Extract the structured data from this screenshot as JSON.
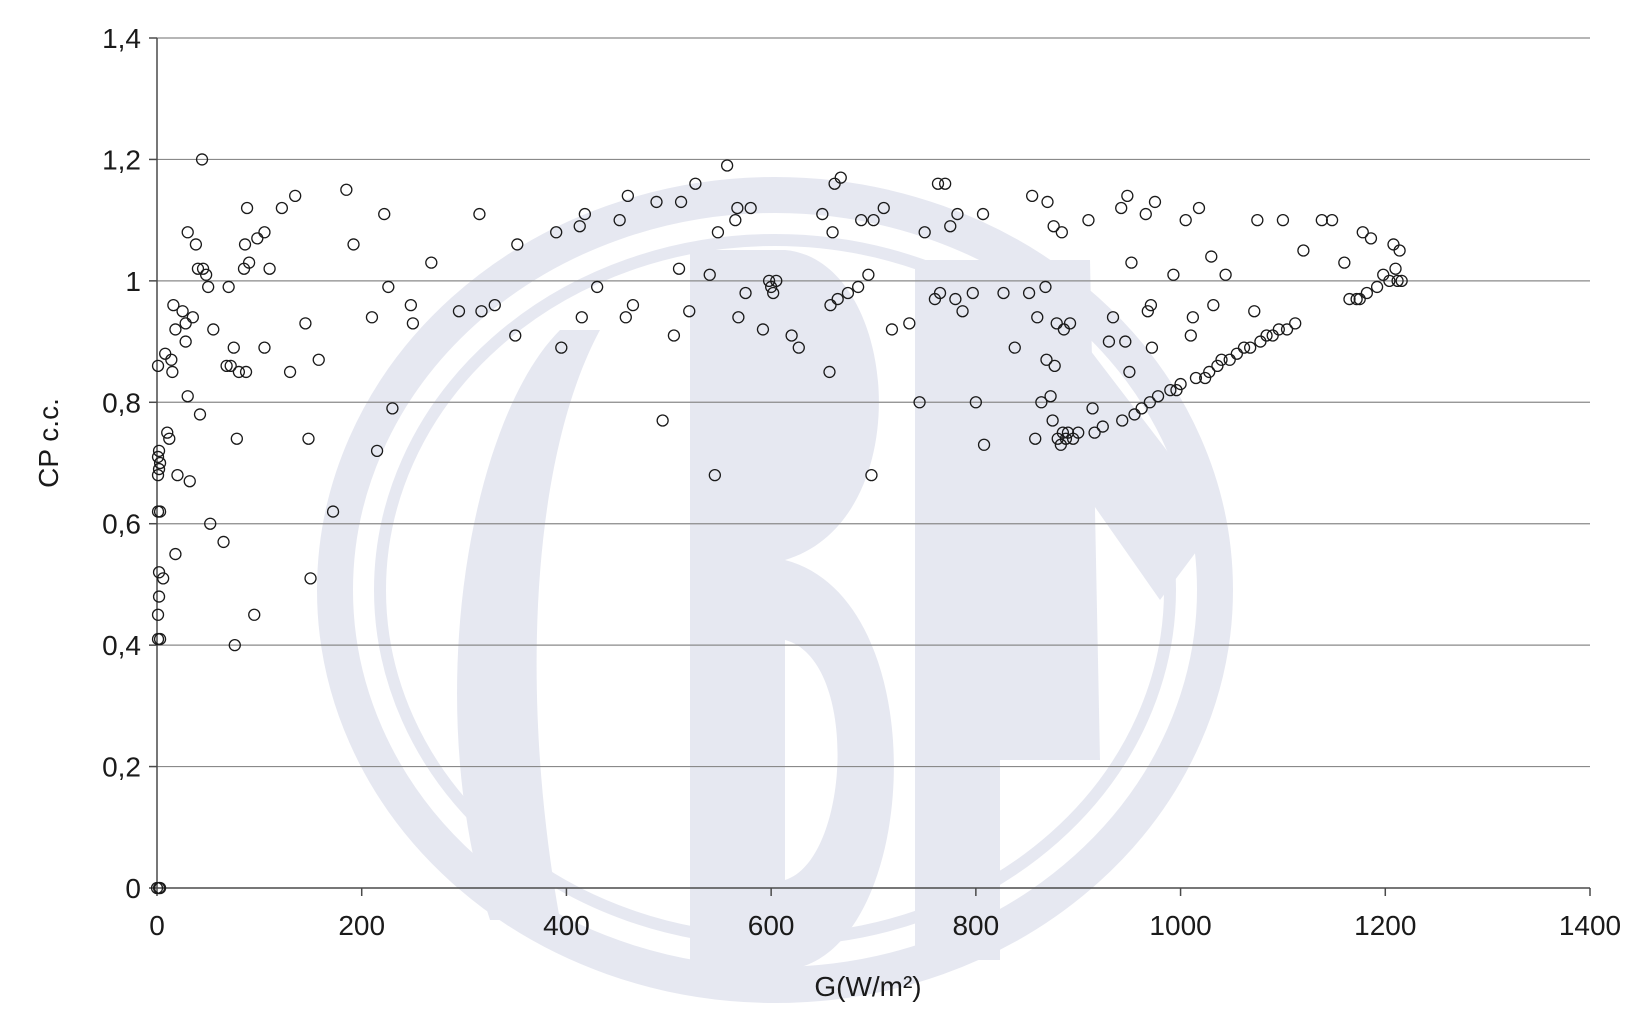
{
  "chart_data": {
    "type": "scatter",
    "xlabel": "G(W/m²)",
    "ylabel": "CP c.c.",
    "xlim": [
      0,
      1400
    ],
    "ylim": [
      0,
      1.4
    ],
    "x_ticks": [
      0,
      200,
      400,
      600,
      800,
      1000,
      1200,
      1400
    ],
    "y_ticks": [
      0,
      0.2,
      0.4,
      0.6,
      0.8,
      1,
      1.2,
      1.4
    ],
    "x_tick_labels": [
      "0",
      "200",
      "400",
      "600",
      "800",
      "1000",
      "1200",
      "1400"
    ],
    "y_tick_labels": [
      "0",
      "0,2",
      "0,4",
      "0,6",
      "0,8",
      "1",
      "1,2",
      "1,4"
    ],
    "grid": "horizontal",
    "legend": "none",
    "marker": "open-circle",
    "watermark": "ABNT",
    "points": [
      [
        0,
        0
      ],
      [
        2,
        0
      ],
      [
        3,
        0
      ],
      [
        1,
        0.41
      ],
      [
        3,
        0.41
      ],
      [
        1,
        0.45
      ],
      [
        2,
        0.48
      ],
      [
        2,
        0.52
      ],
      [
        6,
        0.51
      ],
      [
        1,
        0.62
      ],
      [
        3,
        0.62
      ],
      [
        1,
        0.68
      ],
      [
        2,
        0.69
      ],
      [
        3,
        0.7
      ],
      [
        1,
        0.71
      ],
      [
        2,
        0.72
      ],
      [
        1,
        0.86
      ],
      [
        8,
        0.88
      ],
      [
        10,
        0.75
      ],
      [
        12,
        0.74
      ],
      [
        14,
        0.87
      ],
      [
        15,
        0.85
      ],
      [
        16,
        0.96
      ],
      [
        18,
        0.92
      ],
      [
        18,
        0.55
      ],
      [
        20,
        0.68
      ],
      [
        25,
        0.95
      ],
      [
        28,
        0.93
      ],
      [
        28,
        0.9
      ],
      [
        30,
        0.81
      ],
      [
        30,
        1.08
      ],
      [
        32,
        0.67
      ],
      [
        35,
        0.94
      ],
      [
        38,
        1.06
      ],
      [
        40,
        1.02
      ],
      [
        42,
        0.78
      ],
      [
        44,
        1.2
      ],
      [
        45,
        1.02
      ],
      [
        48,
        1.01
      ],
      [
        50,
        0.99
      ],
      [
        52,
        0.6
      ],
      [
        55,
        0.92
      ],
      [
        65,
        0.57
      ],
      [
        68,
        0.86
      ],
      [
        70,
        0.99
      ],
      [
        72,
        0.86
      ],
      [
        75,
        0.89
      ],
      [
        76,
        0.4
      ],
      [
        78,
        0.74
      ],
      [
        80,
        0.85
      ],
      [
        85,
        1.02
      ],
      [
        86,
        1.06
      ],
      [
        87,
        0.85
      ],
      [
        88,
        1.12
      ],
      [
        90,
        1.03
      ],
      [
        95,
        0.45
      ],
      [
        98,
        1.07
      ],
      [
        105,
        1.08
      ],
      [
        105,
        0.89
      ],
      [
        110,
        1.02
      ],
      [
        122,
        1.12
      ],
      [
        130,
        0.85
      ],
      [
        135,
        1.14
      ],
      [
        145,
        0.93
      ],
      [
        148,
        0.74
      ],
      [
        150,
        0.51
      ],
      [
        158,
        0.87
      ],
      [
        172,
        0.62
      ],
      [
        185,
        1.15
      ],
      [
        192,
        1.06
      ],
      [
        210,
        0.94
      ],
      [
        215,
        0.72
      ],
      [
        222,
        1.11
      ],
      [
        226,
        0.99
      ],
      [
        230,
        0.79
      ],
      [
        248,
        0.96
      ],
      [
        250,
        0.93
      ],
      [
        268,
        1.03
      ],
      [
        295,
        0.95
      ],
      [
        315,
        1.11
      ],
      [
        317,
        0.95
      ],
      [
        330,
        0.96
      ],
      [
        350,
        0.91
      ],
      [
        352,
        1.06
      ],
      [
        390,
        1.08
      ],
      [
        395,
        0.89
      ],
      [
        413,
        1.09
      ],
      [
        415,
        0.94
      ],
      [
        418,
        1.11
      ],
      [
        430,
        0.99
      ],
      [
        452,
        1.1
      ],
      [
        458,
        0.94
      ],
      [
        460,
        1.14
      ],
      [
        465,
        0.96
      ],
      [
        488,
        1.13
      ],
      [
        494,
        0.77
      ],
      [
        505,
        0.91
      ],
      [
        510,
        1.02
      ],
      [
        512,
        1.13
      ],
      [
        520,
        0.95
      ],
      [
        526,
        1.16
      ],
      [
        540,
        1.01
      ],
      [
        545,
        0.68
      ],
      [
        548,
        1.08
      ],
      [
        557,
        1.19
      ],
      [
        565,
        1.1
      ],
      [
        567,
        1.12
      ],
      [
        568,
        0.94
      ],
      [
        575,
        0.98
      ],
      [
        580,
        1.12
      ],
      [
        592,
        0.92
      ],
      [
        598,
        1.0
      ],
      [
        600,
        0.99
      ],
      [
        602,
        0.98
      ],
      [
        605,
        1.0
      ],
      [
        620,
        0.91
      ],
      [
        627,
        0.89
      ],
      [
        650,
        1.11
      ],
      [
        657,
        0.85
      ],
      [
        658,
        0.96
      ],
      [
        660,
        1.08
      ],
      [
        662,
        1.16
      ],
      [
        665,
        0.97
      ],
      [
        668,
        1.17
      ],
      [
        675,
        0.98
      ],
      [
        685,
        0.99
      ],
      [
        688,
        1.1
      ],
      [
        695,
        1.01
      ],
      [
        698,
        0.68
      ],
      [
        700,
        1.1
      ],
      [
        710,
        1.12
      ],
      [
        718,
        0.92
      ],
      [
        735,
        0.93
      ],
      [
        745,
        0.8
      ],
      [
        750,
        1.08
      ],
      [
        760,
        0.97
      ],
      [
        763,
        1.16
      ],
      [
        765,
        0.98
      ],
      [
        770,
        1.16
      ],
      [
        775,
        1.09
      ],
      [
        780,
        0.97
      ],
      [
        782,
        1.11
      ],
      [
        787,
        0.95
      ],
      [
        797,
        0.98
      ],
      [
        800,
        0.8
      ],
      [
        807,
        1.11
      ],
      [
        808,
        0.73
      ],
      [
        827,
        0.98
      ],
      [
        838,
        0.89
      ],
      [
        852,
        0.98
      ],
      [
        855,
        1.14
      ],
      [
        858,
        0.74
      ],
      [
        860,
        0.94
      ],
      [
        864,
        0.8
      ],
      [
        868,
        0.99
      ],
      [
        869,
        0.87
      ],
      [
        870,
        1.13
      ],
      [
        873,
        0.81
      ],
      [
        875,
        0.77
      ],
      [
        876,
        1.09
      ],
      [
        877,
        0.86
      ],
      [
        879,
        0.93
      ],
      [
        880,
        0.74
      ],
      [
        883,
        0.73
      ],
      [
        884,
        1.08
      ],
      [
        885,
        0.75
      ],
      [
        886,
        0.92
      ],
      [
        888,
        0.74
      ],
      [
        890,
        0.75
      ],
      [
        892,
        0.93
      ],
      [
        895,
        0.74
      ],
      [
        900,
        0.75
      ],
      [
        910,
        1.1
      ],
      [
        914,
        0.79
      ],
      [
        916,
        0.75
      ],
      [
        924,
        0.76
      ],
      [
        930,
        0.9
      ],
      [
        934,
        0.94
      ],
      [
        942,
        1.12
      ],
      [
        943,
        0.77
      ],
      [
        946,
        0.9
      ],
      [
        948,
        1.14
      ],
      [
        950,
        0.85
      ],
      [
        952,
        1.03
      ],
      [
        955,
        0.78
      ],
      [
        962,
        0.79
      ],
      [
        966,
        1.11
      ],
      [
        968,
        0.95
      ],
      [
        970,
        0.8
      ],
      [
        971,
        0.96
      ],
      [
        972,
        0.89
      ],
      [
        975,
        1.13
      ],
      [
        978,
        0.81
      ],
      [
        990,
        0.82
      ],
      [
        993,
        1.01
      ],
      [
        996,
        0.82
      ],
      [
        1000,
        0.83
      ],
      [
        1005,
        1.1
      ],
      [
        1010,
        0.91
      ],
      [
        1012,
        0.94
      ],
      [
        1015,
        0.84
      ],
      [
        1018,
        1.12
      ],
      [
        1024,
        0.84
      ],
      [
        1028,
        0.85
      ],
      [
        1030,
        1.04
      ],
      [
        1032,
        0.96
      ],
      [
        1036,
        0.86
      ],
      [
        1040,
        0.87
      ],
      [
        1044,
        1.01
      ],
      [
        1048,
        0.87
      ],
      [
        1055,
        0.88
      ],
      [
        1062,
        0.89
      ],
      [
        1068,
        0.89
      ],
      [
        1072,
        0.95
      ],
      [
        1075,
        1.1
      ],
      [
        1078,
        0.9
      ],
      [
        1084,
        0.91
      ],
      [
        1090,
        0.91
      ],
      [
        1096,
        0.92
      ],
      [
        1100,
        1.1
      ],
      [
        1104,
        0.92
      ],
      [
        1112,
        0.93
      ],
      [
        1120,
        1.05
      ],
      [
        1138,
        1.1
      ],
      [
        1148,
        1.1
      ],
      [
        1160,
        1.03
      ],
      [
        1165,
        0.97
      ],
      [
        1172,
        0.97
      ],
      [
        1175,
        0.97
      ],
      [
        1178,
        1.08
      ],
      [
        1182,
        0.98
      ],
      [
        1186,
        1.07
      ],
      [
        1192,
        0.99
      ],
      [
        1198,
        1.01
      ],
      [
        1204,
        1.0
      ],
      [
        1208,
        1.06
      ],
      [
        1210,
        1.02
      ],
      [
        1212,
        1.0
      ],
      [
        1214,
        1.05
      ],
      [
        1216,
        1.0
      ]
    ]
  }
}
